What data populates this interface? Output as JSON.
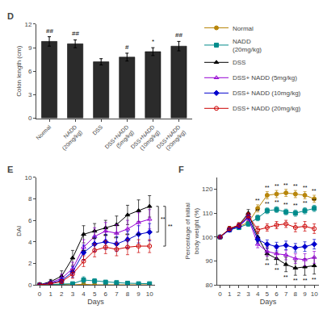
{
  "chart_data": [
    {
      "type": "bar",
      "title": "D",
      "categories": [
        "Normal",
        "NADD\n(20mg/kg)",
        "DSS",
        "DSS+NADD\n(5mg/kg)",
        "DSS+NADD\n(10mg/kg)",
        "DSS+NADD\n(20mg/kg)"
      ],
      "values": [
        9.8,
        9.5,
        7.2,
        7.8,
        8.5,
        9.2
      ],
      "errors": [
        0.6,
        0.5,
        0.4,
        0.5,
        0.5,
        0.6
      ],
      "color": "#2b2b2b",
      "ylabel": "Colon length (cm)",
      "ylim": [
        0,
        12
      ],
      "yticks": [
        0,
        3,
        6,
        9,
        12
      ],
      "grid": false,
      "annotations": [
        {
          "text": "##",
          "index": 0
        },
        {
          "text": "##",
          "index": 1
        },
        {
          "text": "#",
          "index": 3
        },
        {
          "text": "*",
          "index": 4
        },
        {
          "text": "##",
          "index": 5
        }
      ]
    },
    {
      "type": "line",
      "title": "E",
      "x": [
        0,
        1,
        2,
        3,
        4,
        5,
        6,
        7,
        8,
        9,
        10
      ],
      "xlabel": "Days",
      "ylabel": "DAI",
      "xlim": [
        -0.3,
        10.5
      ],
      "xticks": [
        0,
        1,
        2,
        3,
        4,
        5,
        6,
        7,
        8,
        9,
        10
      ],
      "ylim": [
        0,
        10
      ],
      "yticks": [
        0,
        2,
        4,
        6,
        8,
        10
      ],
      "grid": false,
      "series": [
        {
          "name": "Normal",
          "color": "#b8860b",
          "marker": "circle",
          "values": [
            0.0,
            0.05,
            0.05,
            0.0,
            0.05,
            0.0,
            0.0,
            0.05,
            0.0,
            0.0,
            0.0
          ],
          "errors": [
            0.0,
            0.05,
            0.05,
            0.05,
            0.1,
            0.05,
            0.05,
            0.05,
            0.05,
            0.05,
            0.05
          ]
        },
        {
          "name": "NADD\n(20mg/kg)",
          "color": "#008b8b",
          "marker": "square",
          "values": [
            0.0,
            0.05,
            0.1,
            0.1,
            0.45,
            0.35,
            0.25,
            0.2,
            0.15,
            0.1,
            0.1
          ],
          "errors": [
            0.0,
            0.05,
            0.1,
            0.1,
            0.3,
            0.2,
            0.15,
            0.15,
            0.1,
            0.1,
            0.1
          ]
        },
        {
          "name": "DSS",
          "color": "#000000",
          "marker": "triangle-up",
          "values": [
            0.0,
            0.3,
            0.8,
            2.5,
            4.7,
            5.0,
            5.3,
            5.6,
            6.5,
            6.9,
            7.3
          ],
          "errors": [
            0.0,
            0.2,
            0.5,
            0.7,
            0.8,
            0.7,
            0.7,
            0.8,
            0.9,
            1.0,
            1.0
          ]
        },
        {
          "name": "DSS+ NADD (5mg/kg)",
          "color": "#9400d3",
          "marker": "triangle-up-open",
          "values": [
            0.0,
            0.2,
            0.6,
            1.5,
            3.5,
            4.5,
            5.0,
            4.8,
            5.2,
            5.8,
            6.1
          ],
          "errors": [
            0.0,
            0.15,
            0.4,
            0.6,
            0.7,
            0.8,
            0.8,
            0.8,
            0.8,
            0.9,
            0.9
          ]
        },
        {
          "name": "DSS+ NADD (10mg/kg)",
          "color": "#0000cd",
          "marker": "diamond",
          "values": [
            0.0,
            0.15,
            0.4,
            1.2,
            3.0,
            3.8,
            4.0,
            3.8,
            4.2,
            4.7,
            4.9
          ],
          "errors": [
            0.0,
            0.1,
            0.3,
            0.5,
            0.7,
            0.7,
            0.7,
            0.7,
            0.8,
            0.8,
            0.8
          ]
        },
        {
          "name": "DSS+ NADD (20mg/kg)",
          "color": "#cc0000",
          "marker": "circle-open",
          "values": [
            0.0,
            0.1,
            0.3,
            1.0,
            2.2,
            3.2,
            3.5,
            3.3,
            3.5,
            3.6,
            3.6
          ],
          "errors": [
            0.0,
            0.1,
            0.2,
            0.4,
            0.5,
            0.6,
            0.6,
            0.6,
            0.7,
            0.6,
            0.6
          ]
        }
      ],
      "annotations": [
        {
          "text": "**",
          "x": 4,
          "series": 5,
          "position": "above"
        },
        {
          "text": "**",
          "x": 5,
          "series": 5,
          "position": "above"
        },
        {
          "text": "**",
          "x": 6,
          "series": 5,
          "position": "above"
        },
        {
          "text": "**",
          "x": 7,
          "series": 5,
          "position": "above"
        },
        {
          "text": "**",
          "x": 8,
          "series": 5,
          "position": "above"
        },
        {
          "text": "**",
          "x": 9,
          "series": 5,
          "position": "above"
        },
        {
          "text": "**",
          "between": [
            2,
            4
          ]
        },
        {
          "text": "**",
          "between": [
            2,
            5
          ]
        }
      ]
    },
    {
      "type": "line",
      "title": "F",
      "x": [
        0,
        1,
        2,
        3,
        4,
        5,
        6,
        7,
        8,
        9,
        10
      ],
      "xlabel": "Days",
      "ylabel": "Percentage of initial\nbody weight (%)",
      "xlim": [
        -0.3,
        10.5
      ],
      "xticks": [
        0,
        1,
        2,
        3,
        4,
        5,
        6,
        7,
        8,
        9,
        10
      ],
      "ylim": [
        80,
        125
      ],
      "yticks": [
        80,
        90,
        100,
        110,
        120
      ],
      "grid": false,
      "series": [
        {
          "name": "Normal",
          "color": "#b8860b",
          "marker": "circle",
          "values": [
            100.0,
            103.5,
            104.5,
            106.0,
            112.0,
            117.5,
            118.0,
            118.5,
            118.0,
            117.5,
            116.0
          ],
          "errors": [
            0,
            0.8,
            0.9,
            1.0,
            1.5,
            1.5,
            1.5,
            1.5,
            1.5,
            1.5,
            1.5
          ]
        },
        {
          "name": "NADD\n(20mg/kg)",
          "color": "#008b8b",
          "marker": "square",
          "values": [
            100.0,
            103.0,
            104.0,
            105.5,
            108.0,
            111.0,
            111.5,
            110.5,
            110.0,
            111.0,
            112.0
          ],
          "errors": [
            0,
            0.8,
            0.9,
            1.0,
            1.2,
            1.2,
            1.2,
            1.2,
            1.3,
            1.3,
            1.3
          ]
        },
        {
          "name": "DSS",
          "color": "#000000",
          "marker": "triangle-up",
          "values": [
            100.0,
            103.5,
            105.0,
            110.0,
            100.0,
            93.0,
            91.0,
            88.5,
            87.0,
            87.5,
            88.0
          ],
          "errors": [
            0,
            0.9,
            1.0,
            1.5,
            2.0,
            2.5,
            2.5,
            3.0,
            3.0,
            3.5,
            3.5
          ]
        },
        {
          "name": "DSS+ NADD (5mg/kg)",
          "color": "#9400d3",
          "marker": "triangle-up-open",
          "values": [
            100.0,
            103.0,
            104.5,
            108.0,
            97.0,
            94.0,
            93.0,
            92.5,
            91.0,
            90.5,
            91.5
          ],
          "errors": [
            0,
            0.8,
            0.9,
            1.2,
            1.5,
            2.0,
            2.0,
            2.0,
            2.0,
            2.5,
            2.5
          ]
        },
        {
          "name": "DSS+ NADD (10mg/kg)",
          "color": "#0000cd",
          "marker": "diamond",
          "values": [
            100.0,
            103.0,
            104.5,
            108.5,
            99.0,
            97.0,
            96.0,
            96.5,
            95.5,
            96.0,
            97.0
          ],
          "errors": [
            0,
            0.8,
            0.9,
            1.2,
            1.5,
            1.8,
            1.8,
            1.8,
            1.8,
            2.0,
            2.0
          ]
        },
        {
          "name": "DSS+ NADD (20mg/kg)",
          "color": "#cc0000",
          "marker": "circle-open",
          "values": [
            100.0,
            103.5,
            105.0,
            109.0,
            103.0,
            104.0,
            105.0,
            105.5,
            104.0,
            104.5,
            103.5
          ],
          "errors": [
            0,
            0.8,
            0.9,
            1.2,
            1.5,
            1.5,
            1.5,
            1.5,
            1.8,
            2.0,
            2.0
          ]
        }
      ],
      "annotations": [
        {
          "text": "**",
          "x": 4,
          "series": 0,
          "position": "above"
        },
        {
          "text": "**",
          "x": 5,
          "series": 0,
          "position": "above"
        },
        {
          "text": "**",
          "x": 6,
          "series": 0,
          "position": "above"
        },
        {
          "text": "**",
          "x": 7,
          "series": 0,
          "position": "above"
        },
        {
          "text": "**",
          "x": 8,
          "series": 0,
          "position": "above"
        },
        {
          "text": "**",
          "x": 9,
          "series": 0,
          "position": "above"
        },
        {
          "text": "**",
          "x": 10,
          "series": 0,
          "position": "above"
        },
        {
          "text": "**",
          "x": 4,
          "series": 1,
          "position": "above"
        },
        {
          "text": "**",
          "x": 5,
          "series": 1,
          "position": "above"
        },
        {
          "text": "**",
          "x": 6,
          "series": 1,
          "position": "above"
        },
        {
          "text": "**",
          "x": 7,
          "series": 1,
          "position": "above"
        },
        {
          "text": "**",
          "x": 8,
          "series": 1,
          "position": "above"
        },
        {
          "text": "**",
          "x": 9,
          "series": 1,
          "position": "above"
        },
        {
          "text": "**",
          "x": 10,
          "series": 1,
          "position": "above"
        },
        {
          "text": "**",
          "x": 5,
          "series": 2,
          "position": "below"
        },
        {
          "text": "**",
          "x": 6,
          "series": 2,
          "position": "below"
        },
        {
          "text": "**",
          "x": 7,
          "series": 2,
          "position": "below"
        },
        {
          "text": "**",
          "x": 8,
          "series": 2,
          "position": "below"
        },
        {
          "text": "**",
          "x": 9,
          "series": 2,
          "position": "below"
        },
        {
          "text": "**",
          "x": 10,
          "series": 2,
          "position": "below"
        }
      ]
    }
  ]
}
